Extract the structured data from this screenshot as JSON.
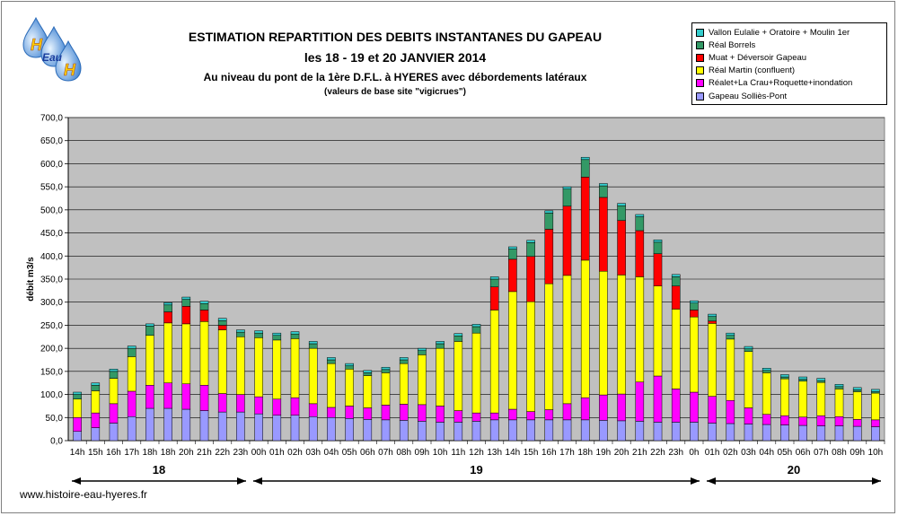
{
  "title": "ESTIMATION REPARTITION DES DEBITS INSTANTANES DU GAPEAU",
  "subtitle": "les 18 - 19 et 20 JANVIER 2014",
  "subtitle2": "Au niveau du pont de la 1ère D.F.L. à HYERES avec  débordements latéraux",
  "subtitle3": "(valeurs de base site \"vigicrues\")",
  "logo": {
    "text_top": "H",
    "text_mid": "Eau",
    "text_bottom": "H"
  },
  "website": "www.histoire-eau-hyeres.fr",
  "colors": {
    "plot_bg": "#c0c0c0",
    "gapeau": "#9999ff",
    "realet": "#ff00ff",
    "real_martin": "#ffff00",
    "muat": "#ff0000",
    "borrels": "#339966",
    "vallon": "#33cccc"
  },
  "chart_data": {
    "type": "bar",
    "stacked": true,
    "ylabel": "débit m3/s",
    "ylim": [
      0,
      700
    ],
    "ytick_step": 50,
    "ytick_labels": [
      "0,0",
      "50,0",
      "100,0",
      "150,0",
      "200,0",
      "250,0",
      "300,0",
      "350,0",
      "400,0",
      "450,0",
      "500,0",
      "550,0",
      "600,0",
      "650,0",
      "700,0"
    ],
    "grid": true,
    "legend_position": "top-right",
    "categories": [
      "14h",
      "15h",
      "16h",
      "17h",
      "18h",
      "18h",
      "20h",
      "21h",
      "22h",
      "23h",
      "00h",
      "01h",
      "02h",
      "03h",
      "04h",
      "05h",
      "06h",
      "07h",
      "08h",
      "09h",
      "10h",
      "11h",
      "12h",
      "13h",
      "14h",
      "15h",
      "16h",
      "17h",
      "18h",
      "19h",
      "20h",
      "21h",
      "22h",
      "23h",
      "0h",
      "01h",
      "02h",
      "03h",
      "04h",
      "05h",
      "06h",
      "07h",
      "08h",
      "09h",
      "10h"
    ],
    "day_labels": [
      {
        "label": "18",
        "from": 0,
        "to": 9
      },
      {
        "label": "19",
        "from": 10,
        "to": 34
      },
      {
        "label": "20",
        "from": 35,
        "to": 44
      }
    ],
    "series": [
      {
        "name": "Gapeau Solliès-Pont",
        "color": "#9999ff",
        "values": [
          20,
          28,
          38,
          52,
          70,
          70,
          68,
          65,
          62,
          62,
          58,
          55,
          55,
          52,
          50,
          48,
          46,
          45,
          44,
          42,
          40,
          40,
          42,
          45,
          45,
          45,
          45,
          45,
          45,
          44,
          43,
          42,
          40,
          40,
          40,
          38,
          37,
          36,
          35,
          34,
          33,
          32,
          32,
          31,
          30
        ]
      },
      {
        "name": "Réalet+La Crau+Roquette+inondation",
        "color": "#ff00ff",
        "values": [
          30,
          32,
          42,
          55,
          50,
          55,
          55,
          55,
          40,
          38,
          37,
          35,
          38,
          28,
          22,
          27,
          25,
          32,
          35,
          36,
          35,
          25,
          18,
          15,
          23,
          18,
          22,
          35,
          48,
          55,
          58,
          85,
          100,
          72,
          65,
          58,
          50,
          35,
          22,
          20,
          18,
          22,
          20,
          15,
          15
        ]
      },
      {
        "name": "Réal Martin (confluent)",
        "color": "#ffff00",
        "values": [
          40,
          48,
          55,
          75,
          108,
          130,
          130,
          138,
          138,
          125,
          128,
          128,
          128,
          120,
          95,
          80,
          70,
          70,
          88,
          108,
          125,
          150,
          173,
          223,
          255,
          238,
          273,
          278,
          298,
          268,
          258,
          228,
          195,
          173,
          163,
          158,
          133,
          122,
          90,
          80,
          78,
          72,
          60,
          60,
          58
        ]
      },
      {
        "name": "Muat + Déversoir Gapeau",
        "color": "#ff0000",
        "values": [
          0,
          0,
          0,
          0,
          0,
          24,
          38,
          25,
          10,
          0,
          0,
          0,
          0,
          0,
          0,
          0,
          0,
          0,
          0,
          0,
          0,
          0,
          0,
          50,
          70,
          98,
          118,
          150,
          180,
          160,
          118,
          100,
          70,
          50,
          15,
          5,
          0,
          0,
          0,
          0,
          0,
          0,
          0,
          0,
          0
        ]
      },
      {
        "name": "Réal Borrels",
        "color": "#339966",
        "values": [
          10,
          12,
          15,
          18,
          20,
          15,
          15,
          14,
          10,
          10,
          10,
          10,
          10,
          10,
          8,
          7,
          6,
          7,
          8,
          9,
          10,
          12,
          14,
          17,
          22,
          30,
          35,
          37,
          38,
          25,
          32,
          30,
          25,
          20,
          15,
          10,
          8,
          6,
          5,
          4,
          4,
          4,
          5,
          4,
          3
        ]
      },
      {
        "name": "Vallon Eulalie + Oratoire + Moulin 1er",
        "color": "#33cccc",
        "values": [
          5,
          5,
          5,
          5,
          5,
          5,
          5,
          5,
          5,
          5,
          5,
          5,
          5,
          5,
          5,
          5,
          5,
          5,
          5,
          5,
          5,
          5,
          5,
          5,
          5,
          5,
          5,
          5,
          5,
          5,
          5,
          5,
          5,
          5,
          5,
          5,
          5,
          5,
          5,
          5,
          5,
          5,
          5,
          5,
          5
        ]
      }
    ]
  }
}
